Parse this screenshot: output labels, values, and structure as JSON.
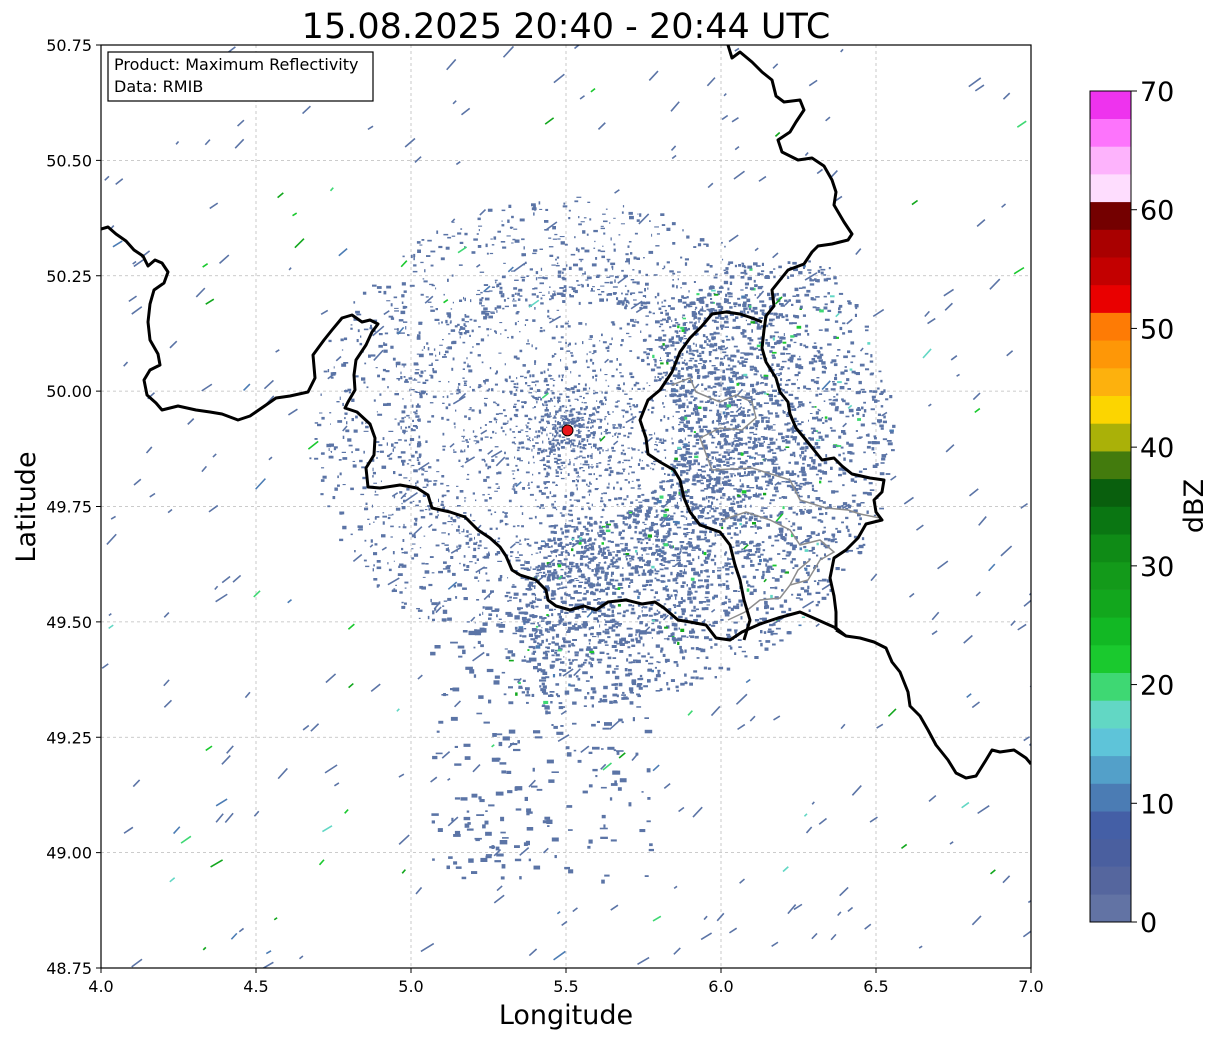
{
  "title": "15.08.2025 20:40 - 20:44 UTC",
  "info_box": {
    "product_line": "Product: Maximum Reflectivity",
    "data_line": "Data: RMIB"
  },
  "map": {
    "xlabel": "Longitude",
    "ylabel": "Latitude",
    "lon_range": [
      4.0,
      7.0
    ],
    "lat_range": [
      48.75,
      50.75
    ],
    "x_ticks": [
      "4.0",
      "4.5",
      "5.0",
      "5.5",
      "6.0",
      "6.5",
      "7.0"
    ],
    "y_ticks": [
      "48.75",
      "49.00",
      "49.25",
      "49.50",
      "49.75",
      "50.00",
      "50.25",
      "50.50",
      "50.75"
    ],
    "grid": true,
    "radar_site": {
      "lon": 5.505,
      "lat": 49.915,
      "color": "#e8151b"
    },
    "echo_base_color": "#5b74a6",
    "border_color": "#000000",
    "subdivision_color": "#8c8c8c"
  },
  "colorbar": {
    "label": "dBZ",
    "range": [
      0,
      70
    ],
    "ticks": [
      "0",
      "10",
      "20",
      "30",
      "40",
      "50",
      "60",
      "70"
    ],
    "colors": [
      "#6273a4",
      "#55669e",
      "#4a5f9f",
      "#445fa6",
      "#4b7cb4",
      "#53a0c9",
      "#5ec4d9",
      "#62d7c4",
      "#3ed873",
      "#1ac92e",
      "#12b824",
      "#12a71d",
      "#139a1a",
      "#0f8b16",
      "#0a7612",
      "#095f0d",
      "#437b0d",
      "#aab108",
      "#fcd500",
      "#fdb10d",
      "#fe9707",
      "#fe7b05",
      "#e90000",
      "#c30000",
      "#a90000",
      "#740000",
      "#feddfe",
      "#fdb3fc",
      "#fd74fc",
      "#ee33ee"
    ]
  }
}
